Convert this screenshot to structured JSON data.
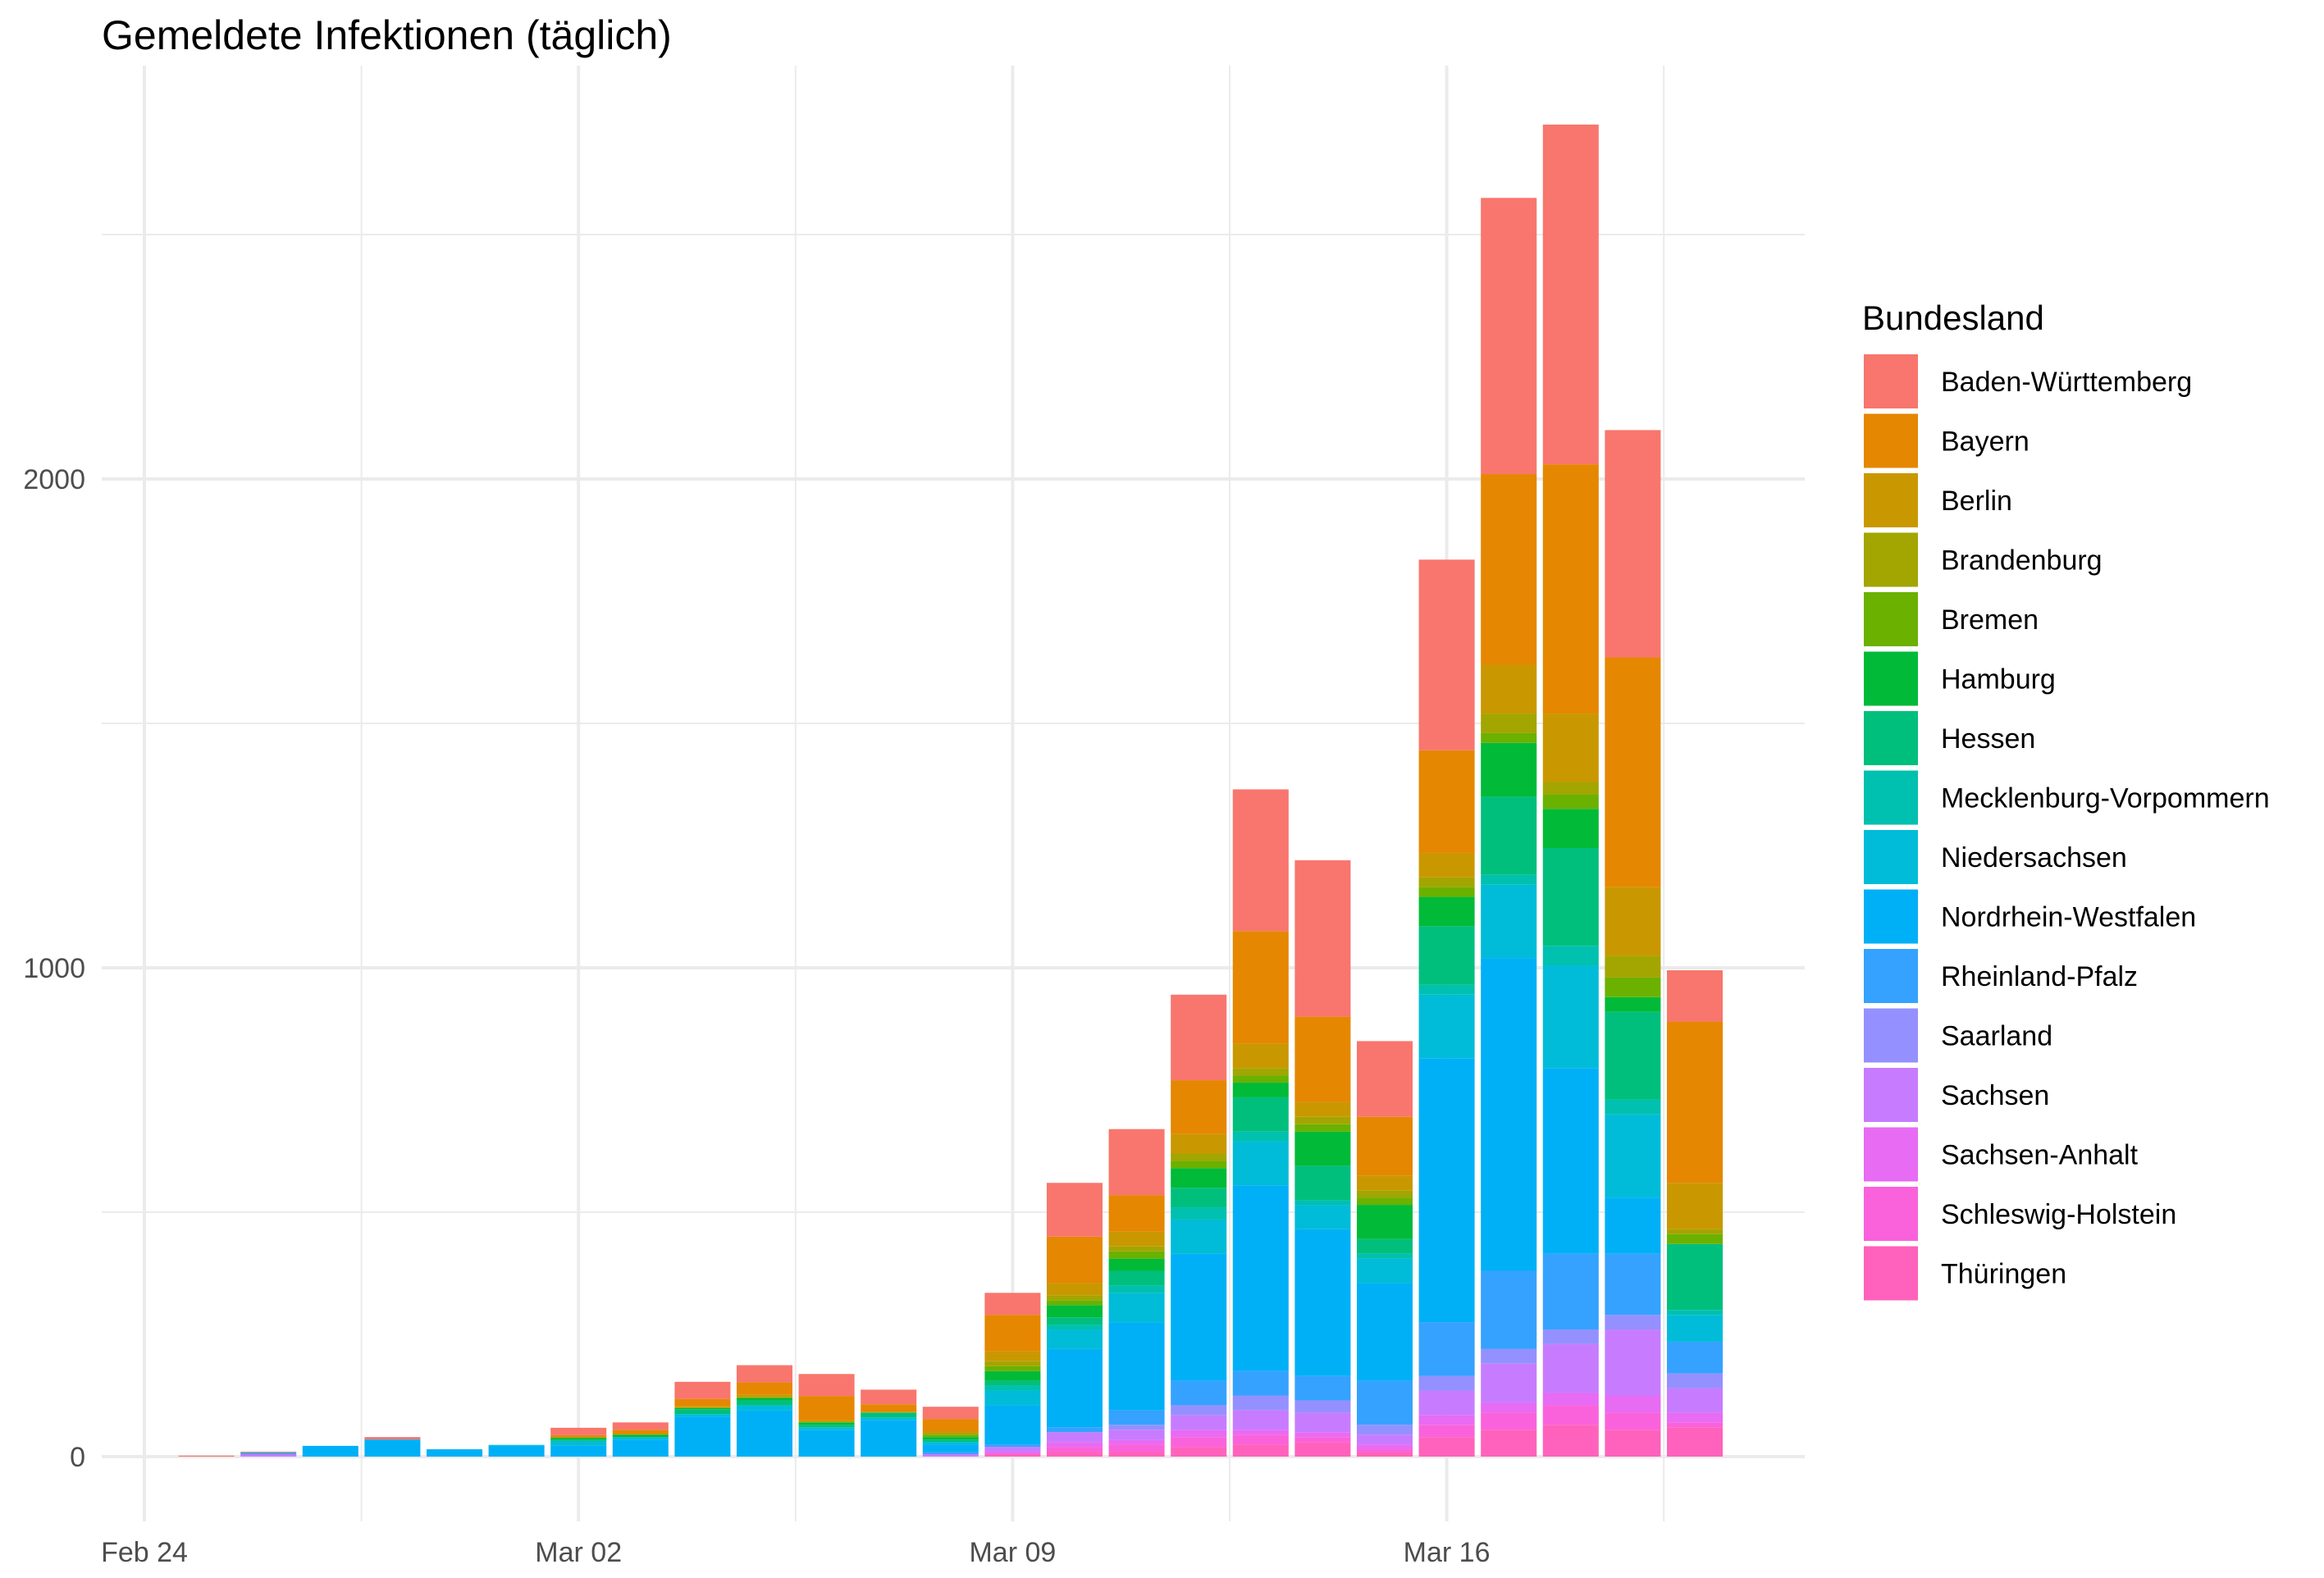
{
  "chart_data": {
    "type": "bar",
    "stacked": true,
    "title": "Gemeldete Infektionen (täglich)",
    "xlabel": "",
    "ylabel": "",
    "x_ticks": [
      "Feb 24",
      "Mar 02",
      "Mar 09",
      "Mar 16"
    ],
    "y_ticks": [
      0,
      1000,
      2000
    ],
    "ylim": [
      -130,
      2800
    ],
    "grid": true,
    "legend": {
      "title": "Bundesland",
      "position": "right"
    },
    "categories": [
      "2020-02-25",
      "2020-02-26",
      "2020-02-27",
      "2020-02-28",
      "2020-02-29",
      "2020-03-01",
      "2020-03-02",
      "2020-03-03",
      "2020-03-04",
      "2020-03-05",
      "2020-03-06",
      "2020-03-07",
      "2020-03-08",
      "2020-03-09",
      "2020-03-10",
      "2020-03-11",
      "2020-03-12",
      "2020-03-13",
      "2020-03-14",
      "2020-03-15",
      "2020-03-16",
      "2020-03-17",
      "2020-03-18",
      "2020-03-19",
      "2020-03-20"
    ],
    "series": [
      {
        "name": "Baden-Württemberg",
        "color": "#F8766D",
        "values": [
          2,
          2,
          0,
          5,
          0,
          0,
          15,
          15,
          35,
          35,
          45,
          30,
          25,
          45,
          110,
          135,
          175,
          290,
          320,
          155,
          390,
          565,
          695,
          465,
          105
        ]
      },
      {
        "name": "Bayern",
        "color": "#E58700",
        "values": [
          0,
          0,
          0,
          0,
          0,
          0,
          5,
          8,
          15,
          25,
          50,
          15,
          25,
          75,
          95,
          75,
          110,
          230,
          175,
          120,
          210,
          390,
          510,
          470,
          330
        ]
      },
      {
        "name": "Berlin",
        "color": "#C99800",
        "values": [
          0,
          0,
          0,
          0,
          0,
          0,
          0,
          2,
          2,
          5,
          2,
          2,
          5,
          20,
          25,
          30,
          40,
          50,
          30,
          30,
          50,
          100,
          140,
          140,
          95
        ]
      },
      {
        "name": "Brandenburg",
        "color": "#A3A500",
        "values": [
          0,
          0,
          0,
          0,
          0,
          0,
          0,
          0,
          2,
          2,
          2,
          0,
          2,
          10,
          10,
          10,
          15,
          15,
          15,
          15,
          20,
          40,
          25,
          45,
          10
        ]
      },
      {
        "name": "Bremen",
        "color": "#6BB100",
        "values": [
          0,
          0,
          0,
          0,
          0,
          0,
          0,
          0,
          0,
          0,
          0,
          0,
          5,
          10,
          10,
          15,
          15,
          15,
          15,
          15,
          20,
          20,
          30,
          40,
          20
        ]
      },
      {
        "name": "Hamburg",
        "color": "#00BA38",
        "values": [
          0,
          0,
          0,
          0,
          0,
          0,
          5,
          5,
          2,
          5,
          5,
          0,
          5,
          20,
          25,
          25,
          40,
          30,
          70,
          70,
          60,
          110,
          80,
          30,
          0
        ]
      },
      {
        "name": "Hessen",
        "color": "#00BF7D",
        "values": [
          0,
          0,
          0,
          0,
          0,
          0,
          2,
          0,
          10,
          10,
          5,
          10,
          5,
          10,
          15,
          30,
          40,
          70,
          70,
          30,
          120,
          160,
          200,
          180,
          135
        ]
      },
      {
        "name": "Mecklenburg-Vorpommern",
        "color": "#00C0AF",
        "values": [
          0,
          0,
          0,
          0,
          0,
          0,
          0,
          0,
          0,
          0,
          0,
          0,
          0,
          10,
          10,
          15,
          25,
          20,
          10,
          10,
          20,
          20,
          40,
          30,
          10
        ]
      },
      {
        "name": "Niedersachsen",
        "color": "#00BCD8",
        "values": [
          0,
          0,
          0,
          0,
          0,
          2,
          10,
          5,
          5,
          10,
          5,
          5,
          5,
          30,
          40,
          60,
          70,
          90,
          50,
          50,
          130,
          150,
          210,
          170,
          55
        ]
      },
      {
        "name": "Nordrhein-Westfalen",
        "color": "#00B0F6",
        "values": [
          0,
          3,
          22,
          35,
          15,
          22,
          22,
          35,
          82,
          95,
          55,
          75,
          15,
          80,
          160,
          180,
          260,
          380,
          300,
          200,
          540,
          640,
          380,
          115,
          0
        ]
      },
      {
        "name": "Rheinland-Pfalz",
        "color": "#35A2FF",
        "values": [
          0,
          0,
          0,
          0,
          0,
          0,
          0,
          0,
          0,
          0,
          0,
          0,
          5,
          5,
          10,
          30,
          50,
          50,
          50,
          90,
          110,
          160,
          155,
          125,
          65
        ]
      },
      {
        "name": "Saarland",
        "color": "#9590FF",
        "values": [
          0,
          0,
          0,
          0,
          0,
          0,
          0,
          0,
          0,
          0,
          0,
          0,
          0,
          0,
          0,
          10,
          20,
          30,
          25,
          20,
          30,
          30,
          30,
          30,
          30
        ]
      },
      {
        "name": "Sachsen",
        "color": "#C77CFF",
        "values": [
          0,
          5,
          0,
          0,
          0,
          0,
          0,
          0,
          0,
          0,
          0,
          0,
          5,
          10,
          20,
          20,
          30,
          40,
          40,
          20,
          50,
          80,
          100,
          135,
          50
        ]
      },
      {
        "name": "Sachsen-Anhalt",
        "color": "#E76BF3",
        "values": [
          0,
          0,
          0,
          0,
          0,
          0,
          0,
          0,
          0,
          0,
          0,
          0,
          0,
          5,
          10,
          10,
          15,
          10,
          10,
          10,
          20,
          20,
          25,
          35,
          20
        ]
      },
      {
        "name": "Schleswig-Holstein",
        "color": "#FA62DB",
        "values": [
          0,
          0,
          0,
          0,
          0,
          0,
          0,
          0,
          0,
          0,
          0,
          0,
          0,
          0,
          10,
          15,
          20,
          20,
          10,
          5,
          25,
          35,
          40,
          35,
          10
        ]
      },
      {
        "name": "Thüringen",
        "color": "#FF62BC",
        "values": [
          0,
          0,
          0,
          0,
          0,
          0,
          0,
          0,
          0,
          0,
          0,
          0,
          0,
          5,
          10,
          10,
          20,
          25,
          30,
          10,
          40,
          55,
          65,
          55,
          60
        ]
      }
    ]
  }
}
